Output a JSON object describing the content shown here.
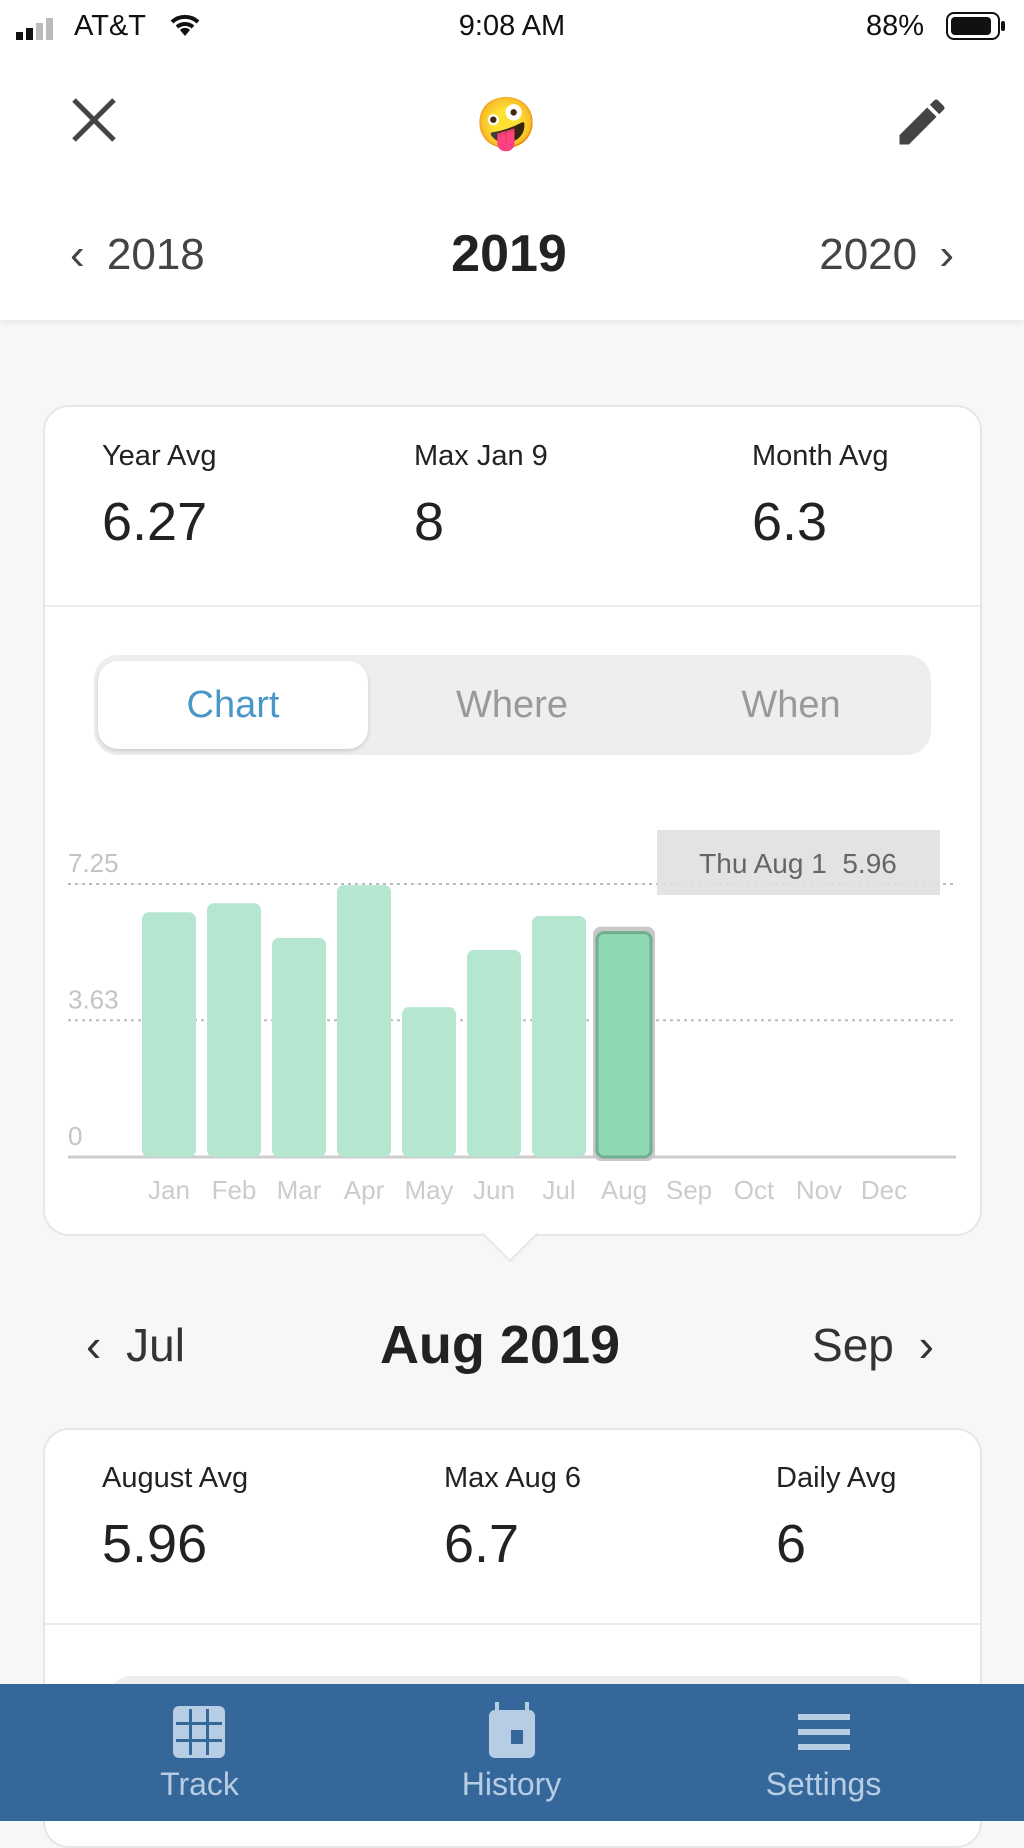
{
  "status": {
    "carrier": "AT&T",
    "time": "9:08 AM",
    "battery": "88%",
    "battery_level": 0.88
  },
  "header": {
    "emoji": "🤪",
    "prev_year": "2018",
    "year": "2019",
    "next_year": "2020"
  },
  "year_stats": [
    {
      "label": "Year Avg",
      "value": "6.27"
    },
    {
      "label": "Max Jan 9",
      "value": "8"
    },
    {
      "label": "Month Avg",
      "value": "6.3"
    }
  ],
  "segments": {
    "items": [
      "Chart",
      "Where",
      "When"
    ],
    "selected": 0
  },
  "chart_data": {
    "type": "bar",
    "categories": [
      "Jan",
      "Feb",
      "Mar",
      "Apr",
      "May",
      "Jun",
      "Jul",
      "Aug",
      "Sep",
      "Oct",
      "Nov",
      "Dec"
    ],
    "values": [
      6.5,
      6.74,
      5.82,
      7.22,
      3.98,
      5.5,
      6.4,
      5.96,
      null,
      null,
      null,
      null
    ],
    "yticks": [
      "0",
      "3.63",
      "7.25"
    ],
    "ylim": [
      0,
      7.25
    ],
    "selected": "Aug",
    "tooltip": "Thu Aug 1  5.96",
    "bar_color": "#b4e6d0",
    "selected_color": "#8fd8b4"
  },
  "month_nav": {
    "prev": "Jul",
    "current": "Aug 2019",
    "next": "Sep"
  },
  "month_stats": [
    {
      "label": "August Avg",
      "value": "5.96"
    },
    {
      "label": "Max Aug 6",
      "value": "6.7"
    },
    {
      "label": "Daily Avg",
      "value": "6"
    }
  ],
  "tabbar": {
    "color": "#36679a",
    "items": [
      {
        "label": "Track",
        "icon": "grid-icon"
      },
      {
        "label": "History",
        "icon": "calendar-icon"
      },
      {
        "label": "Settings",
        "icon": "menu-icon"
      }
    ]
  }
}
